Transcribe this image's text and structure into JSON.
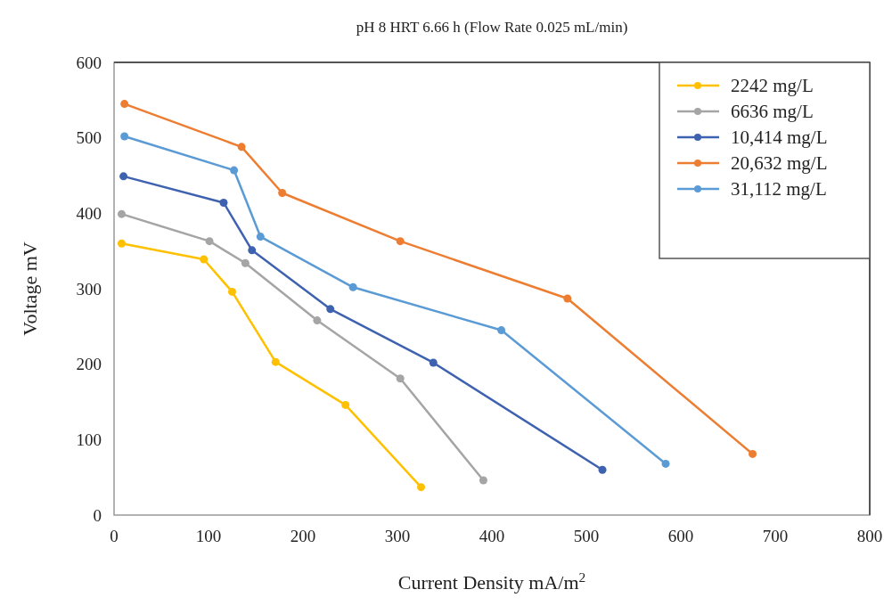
{
  "chart_data": {
    "type": "line",
    "title": "pH 8  HRT 6.66 h (Flow Rate 0.025 mL/min)",
    "xlabel": "Current Density mA/m$^{2}$",
    "ylabel": "Voltage mV",
    "xlim": [
      0,
      800
    ],
    "xticks": [
      0,
      100,
      200,
      300,
      400,
      500,
      600,
      700,
      800
    ],
    "ylim": [
      0,
      600
    ],
    "yticks": [
      0,
      100,
      200,
      300,
      400,
      500,
      600
    ],
    "grid": false,
    "legend": "top right",
    "marker": "circle",
    "line_style": "solid",
    "series": [
      {
        "name": "2242 mg/L",
        "color": "#ffc000",
        "x": [
          8,
          95,
          125,
          171,
          245,
          325
        ],
        "values": [
          360,
          339,
          296,
          203,
          146,
          37
        ]
      },
      {
        "name": "6636 mg/L",
        "color": "#a5a5a5",
        "x": [
          8,
          101,
          139,
          215,
          303,
          391
        ],
        "values": [
          399,
          363,
          334,
          258,
          181,
          46
        ]
      },
      {
        "name": "10,414 mg/L",
        "color": "#3f62b0",
        "x": [
          10,
          116,
          146,
          229,
          338,
          517
        ],
        "values": [
          449,
          414,
          351,
          273,
          202,
          60
        ]
      },
      {
        "name": "20,632 mg/L",
        "color": "#ed7d31",
        "x": [
          11,
          135,
          178,
          303,
          480,
          676
        ],
        "values": [
          545,
          488,
          427,
          363,
          287,
          81
        ]
      },
      {
        "name": "31,112 mg/L",
        "color": "#5b9bd5",
        "x": [
          11,
          127,
          155,
          253,
          410,
          584
        ],
        "values": [
          502,
          457,
          369,
          302,
          245,
          68
        ]
      }
    ]
  }
}
